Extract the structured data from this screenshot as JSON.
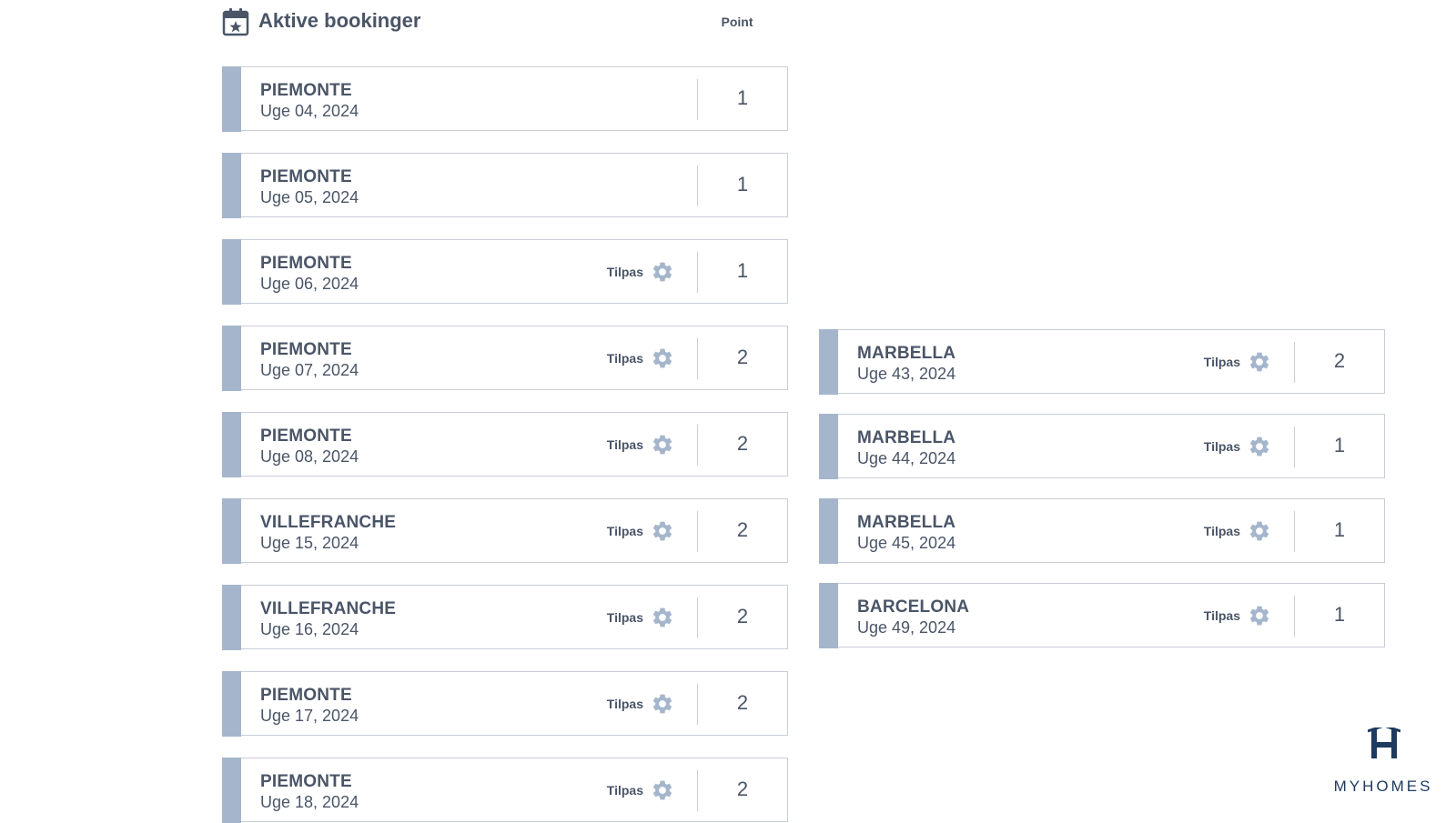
{
  "header": {
    "title": "Aktive bookinger",
    "points_label": "Point",
    "icon": "calendar-star-icon"
  },
  "action_label": "Tilpas",
  "colors": {
    "accent_bar": "#a5b6cc",
    "text": "#4a5568",
    "border": "#c9ced6",
    "logo": "#1e3a5f"
  },
  "left_bookings": [
    {
      "name": "PIEMONTE",
      "week": "Uge 04, 2024",
      "points": "1",
      "adjustable": false
    },
    {
      "name": "PIEMONTE",
      "week": "Uge 05, 2024",
      "points": "1",
      "adjustable": false
    },
    {
      "name": "PIEMONTE",
      "week": "Uge 06, 2024",
      "points": "1",
      "adjustable": true
    },
    {
      "name": "PIEMONTE",
      "week": "Uge 07, 2024",
      "points": "2",
      "adjustable": true
    },
    {
      "name": "PIEMONTE",
      "week": "Uge 08, 2024",
      "points": "2",
      "adjustable": true
    },
    {
      "name": "VILLEFRANCHE",
      "week": "Uge 15, 2024",
      "points": "2",
      "adjustable": true
    },
    {
      "name": "VILLEFRANCHE",
      "week": "Uge 16, 2024",
      "points": "2",
      "adjustable": true
    },
    {
      "name": "PIEMONTE",
      "week": "Uge 17, 2024",
      "points": "2",
      "adjustable": true
    },
    {
      "name": "PIEMONTE",
      "week": "Uge 18, 2024",
      "points": "2",
      "adjustable": true
    }
  ],
  "right_bookings": [
    {
      "name": "MARBELLA",
      "week": "Uge 43, 2024",
      "points": "2",
      "adjustable": true
    },
    {
      "name": "MARBELLA",
      "week": "Uge 44, 2024",
      "points": "1",
      "adjustable": true
    },
    {
      "name": "MARBELLA",
      "week": "Uge 45, 2024",
      "points": "1",
      "adjustable": true
    },
    {
      "name": "BARCELONA",
      "week": "Uge 49, 2024",
      "points": "1",
      "adjustable": true
    }
  ],
  "logo": {
    "text": "MYHOMES",
    "icon": "myhomes-h-logo-icon"
  }
}
